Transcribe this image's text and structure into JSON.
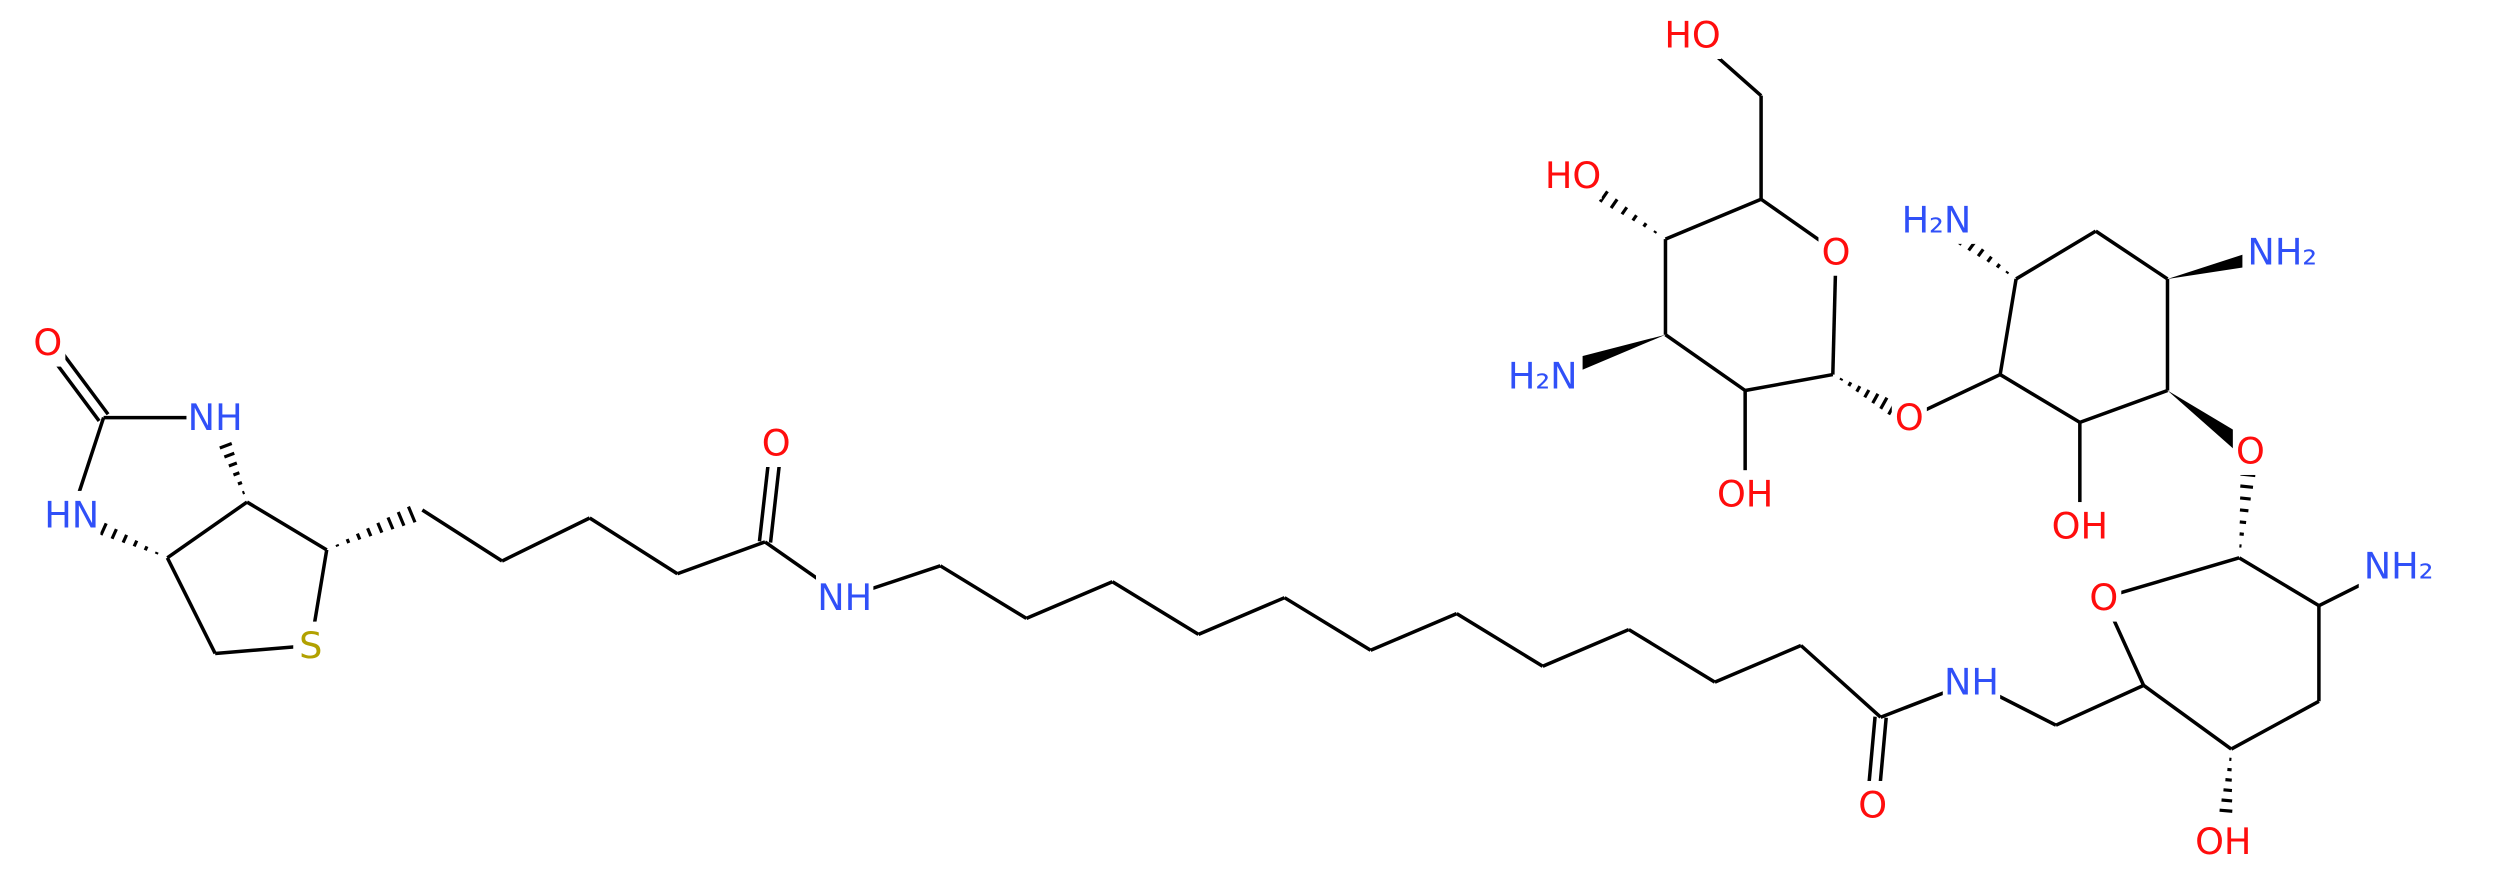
{
  "atoms": [
    {
      "label": "O"
    },
    {
      "label": "NH"
    },
    {
      "label": "HN"
    },
    {
      "label": "S"
    },
    {
      "label": "O"
    },
    {
      "label": "NH"
    },
    {
      "label": "O"
    },
    {
      "label": "NH"
    },
    {
      "label": "O"
    },
    {
      "label": "NH₂"
    },
    {
      "label": "OH"
    },
    {
      "label": "O"
    },
    {
      "label": "NH₂"
    },
    {
      "label": "H₂N"
    },
    {
      "label": "O"
    },
    {
      "label": "OH"
    },
    {
      "label": "O"
    },
    {
      "label": "HO"
    },
    {
      "label": "HO"
    },
    {
      "label": "H₂N"
    },
    {
      "label": "OH"
    }
  ]
}
